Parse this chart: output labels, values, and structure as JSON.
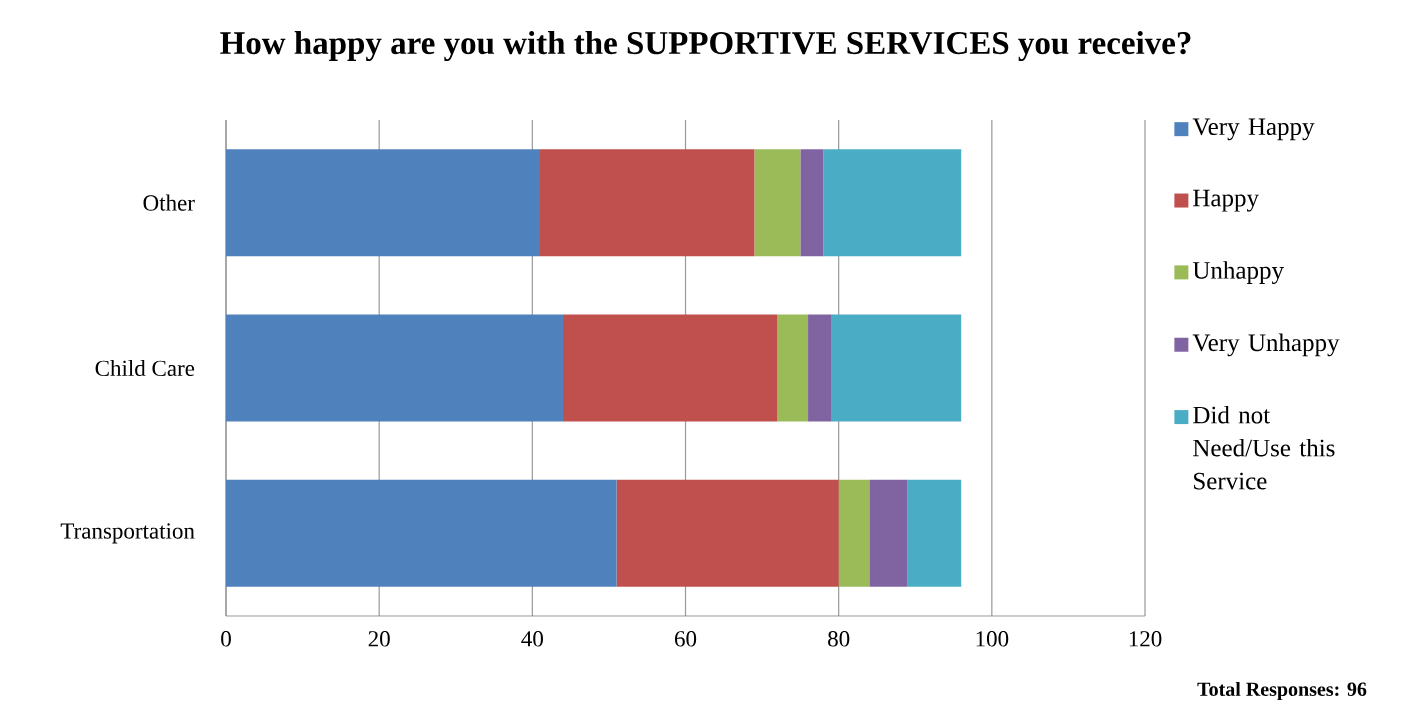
{
  "chart_data": {
    "type": "bar",
    "orientation": "horizontal",
    "stacked": true,
    "title": "How happy are you with the SUPPORTIVE SERVICES you receive?",
    "categories": [
      "Other",
      "Child Care",
      "Transportation"
    ],
    "series": [
      {
        "name": "Very Happy",
        "color": "#4f81bd",
        "values": [
          41,
          44,
          51
        ]
      },
      {
        "name": "Happy",
        "color": "#c0504d",
        "values": [
          28,
          28,
          29
        ]
      },
      {
        "name": "Unhappy",
        "color": "#9bbb59",
        "values": [
          6,
          4,
          4
        ]
      },
      {
        "name": "Very Unhappy",
        "color": "#8064a2",
        "values": [
          3,
          3,
          5
        ]
      },
      {
        "name": "Did not Need/Use this Service",
        "color": "#4bacc6",
        "values": [
          18,
          17,
          7
        ]
      }
    ],
    "xlim": [
      0,
      120
    ],
    "xticks": [
      0,
      20,
      40,
      60,
      80,
      100,
      120
    ],
    "grid": "x",
    "legend": "right",
    "annotations": [
      "**Total Responses: 96**"
    ]
  }
}
